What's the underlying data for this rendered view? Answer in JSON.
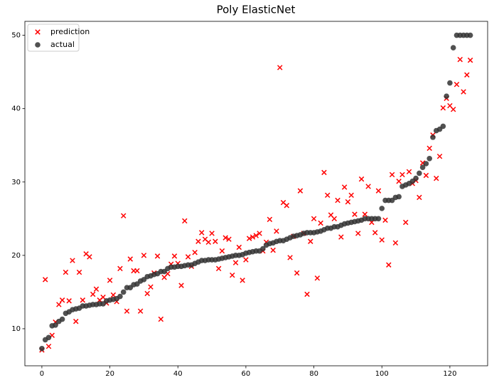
{
  "chart_data": {
    "type": "scatter",
    "title": "Poly ElasticNet",
    "x": [
      0,
      1,
      2,
      3,
      4,
      5,
      6,
      7,
      8,
      9,
      10,
      11,
      12,
      13,
      14,
      15,
      16,
      17,
      18,
      19,
      20,
      21,
      22,
      23,
      24,
      25,
      26,
      27,
      28,
      29,
      30,
      31,
      32,
      33,
      34,
      35,
      36,
      37,
      38,
      39,
      40,
      41,
      42,
      43,
      44,
      45,
      46,
      47,
      48,
      49,
      50,
      51,
      52,
      53,
      54,
      55,
      56,
      57,
      58,
      59,
      60,
      61,
      62,
      63,
      64,
      65,
      66,
      67,
      68,
      69,
      70,
      71,
      72,
      73,
      74,
      75,
      76,
      77,
      78,
      79,
      80,
      81,
      82,
      83,
      84,
      85,
      86,
      87,
      88,
      89,
      90,
      91,
      92,
      93,
      94,
      95,
      96,
      97,
      98,
      99,
      100,
      101,
      102,
      103,
      104,
      105,
      106,
      107,
      108,
      109,
      110,
      111,
      112,
      113,
      114,
      115,
      116,
      117,
      118,
      119,
      120,
      121,
      122,
      123,
      124,
      125,
      126
    ],
    "series": [
      {
        "name": "prediction",
        "color": "#ff0000",
        "marker": "x",
        "values": [
          7.1,
          16.7,
          7.6,
          9.1,
          10.9,
          13.3,
          13.9,
          17.7,
          13.8,
          19.3,
          11.0,
          17.7,
          13.9,
          20.2,
          19.8,
          14.7,
          15.4,
          13.9,
          14.3,
          13.5,
          16.6,
          14.6,
          13.7,
          18.2,
          25.4,
          12.4,
          19.5,
          17.9,
          17.9,
          12.4,
          20.0,
          14.8,
          15.7,
          17.6,
          19.9,
          11.3,
          17.0,
          17.5,
          18.8,
          19.9,
          18.9,
          15.9,
          24.7,
          19.8,
          18.5,
          20.4,
          21.9,
          23.1,
          22.2,
          21.8,
          23.0,
          21.9,
          18.2,
          20.6,
          22.4,
          22.2,
          17.3,
          19.0,
          21.1,
          16.6,
          19.4,
          22.3,
          22.5,
          22.7,
          23.0,
          20.6,
          21.8,
          24.9,
          20.7,
          23.3,
          45.6,
          27.2,
          26.8,
          19.7,
          22.6,
          17.6,
          28.8,
          23.0,
          14.7,
          21.9,
          25.0,
          16.9,
          24.4,
          31.3,
          28.2,
          25.5,
          25.0,
          27.5,
          22.5,
          29.3,
          27.3,
          28.2,
          25.6,
          23.0,
          30.4,
          25.6,
          29.4,
          24.5,
          23.1,
          28.8,
          22.1,
          24.8,
          18.7,
          31.0,
          21.7,
          30.1,
          31.0,
          24.5,
          31.4,
          29.8,
          30.2,
          27.9,
          32.6,
          30.9,
          34.6,
          36.4,
          30.5,
          33.5,
          40.1,
          41.4,
          40.4,
          39.9,
          43.3,
          46.7,
          42.3,
          44.6,
          46.6
        ]
      },
      {
        "name": "actual",
        "color": "#333333",
        "marker": "o",
        "values": [
          7.3,
          8.5,
          8.8,
          10.4,
          10.5,
          11.0,
          11.3,
          12.1,
          12.3,
          12.6,
          12.7,
          12.8,
          13.1,
          13.1,
          13.2,
          13.3,
          13.3,
          13.4,
          13.4,
          13.8,
          13.9,
          14.0,
          14.1,
          14.4,
          15.0,
          15.6,
          15.6,
          16.0,
          16.1,
          16.5,
          16.7,
          17.1,
          17.2,
          17.4,
          17.5,
          17.8,
          17.8,
          18.2,
          18.4,
          18.4,
          18.5,
          18.5,
          18.6,
          18.7,
          18.7,
          18.9,
          19.1,
          19.3,
          19.3,
          19.4,
          19.4,
          19.4,
          19.5,
          19.6,
          19.7,
          19.8,
          19.9,
          20.0,
          20.0,
          20.1,
          20.3,
          20.4,
          20.5,
          20.6,
          20.6,
          20.9,
          21.4,
          21.6,
          21.7,
          21.9,
          22.0,
          22.0,
          22.2,
          22.4,
          22.6,
          22.7,
          22.8,
          23.0,
          23.1,
          23.1,
          23.1,
          23.2,
          23.3,
          23.5,
          23.7,
          23.7,
          23.9,
          23.9,
          24.1,
          24.3,
          24.4,
          24.5,
          24.6,
          24.7,
          24.8,
          25.0,
          25.0,
          25.0,
          25.0,
          25.0,
          26.4,
          27.5,
          27.5,
          27.5,
          27.9,
          28.0,
          29.4,
          29.6,
          29.8,
          30.1,
          30.5,
          31.2,
          32.0,
          32.5,
          33.2,
          36.1,
          37.0,
          37.2,
          37.6,
          41.7,
          43.5,
          48.3,
          50,
          50,
          50,
          50,
          50
        ]
      }
    ],
    "xlim": [
      -5,
      131.1
    ],
    "xticks": [
      0,
      20,
      40,
      60,
      80,
      100,
      120
    ],
    "ylim": [
      4.95,
      51.9
    ],
    "yticks": [
      10,
      20,
      30,
      40,
      50
    ],
    "legend": "upper left"
  }
}
